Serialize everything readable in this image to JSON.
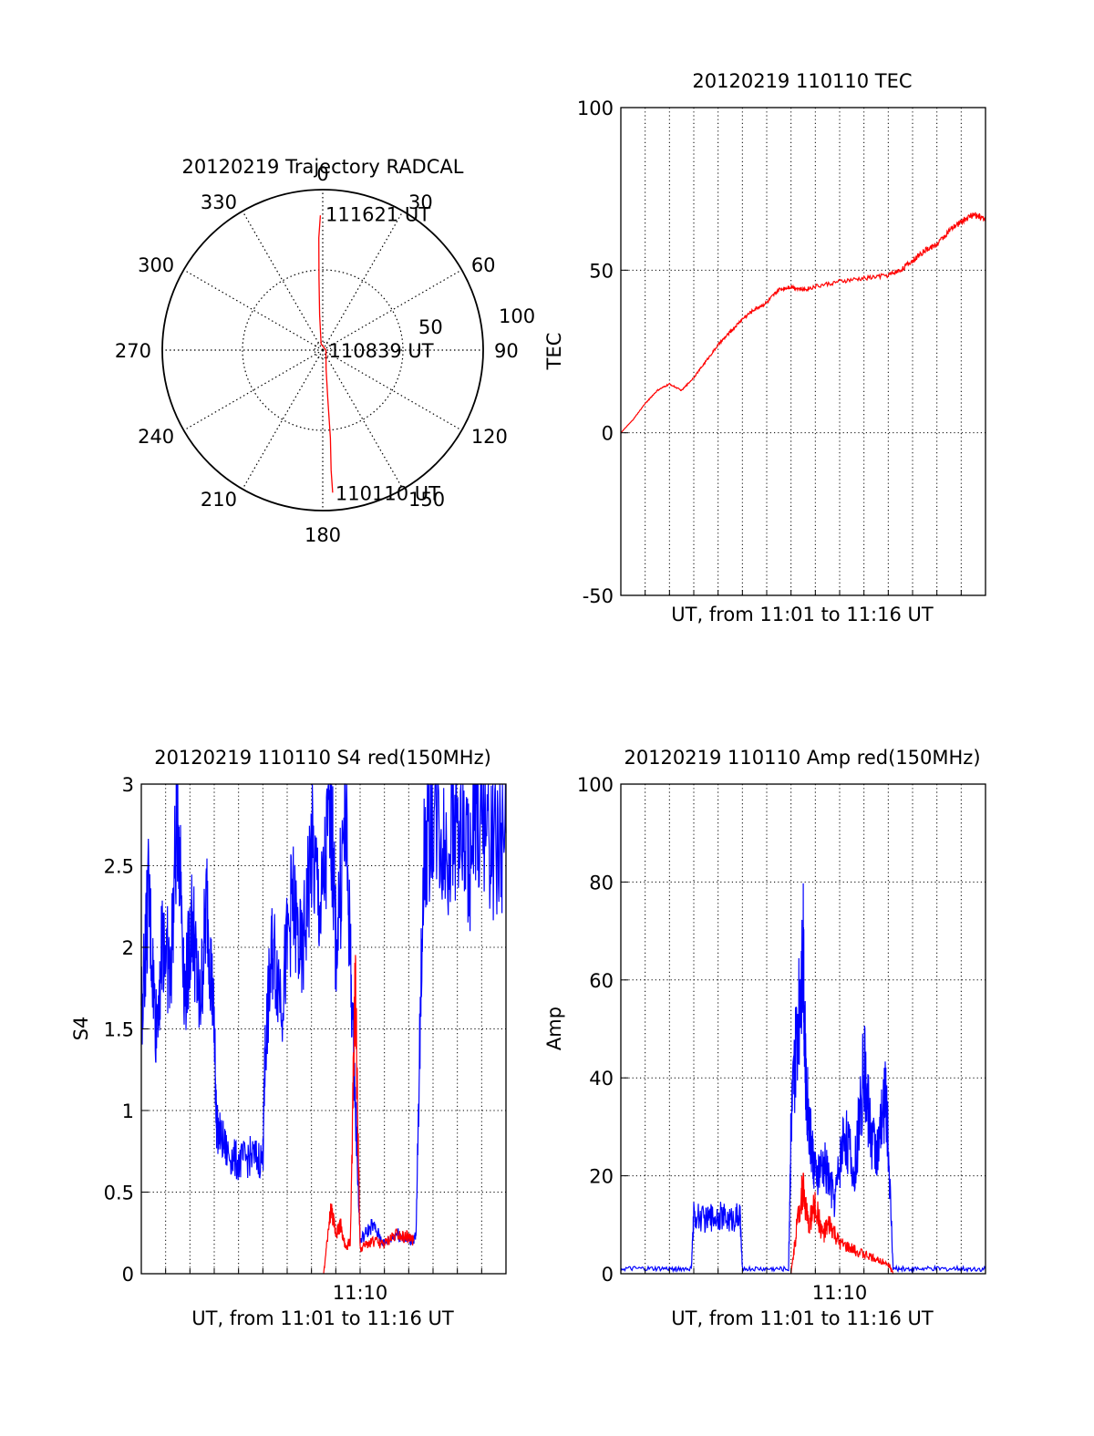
{
  "colors": {
    "background": "#ffffff",
    "axis": "#000000",
    "grid": "#000000",
    "series_red": "#ff0000",
    "series_blue": "#0000ff"
  },
  "chart_data": [
    {
      "id": "polar",
      "type": "scatter",
      "subtype": "polar_trajectory",
      "title": "20120219 Trajectory RADCAL",
      "angle_labels": [
        "0",
        "30",
        "60",
        "90",
        "120",
        "150",
        "180",
        "210",
        "240",
        "270",
        "300",
        "330"
      ],
      "radial_labels": [
        "50",
        "100"
      ],
      "radial_range": [
        0,
        100
      ],
      "grid": true,
      "annotations": [
        {
          "text": "111621 UT",
          "azimuth": 0,
          "radius": 85
        },
        {
          "text": "110839 UT",
          "azimuth": 90,
          "radius": 2
        },
        {
          "text": "110110 UT",
          "azimuth": 176,
          "radius": 89
        }
      ],
      "series": [
        {
          "color": "#ff0000",
          "points": [
            {
              "azimuth": 359,
              "radius": 84
            },
            {
              "azimuth": 358,
              "radius": 70
            },
            {
              "azimuth": 357,
              "radius": 45
            },
            {
              "azimuth": 355,
              "radius": 22
            },
            {
              "azimuth": 345,
              "radius": 4
            },
            {
              "azimuth": 90,
              "radius": 2
            },
            {
              "azimuth": 170,
              "radius": 12
            },
            {
              "azimuth": 174,
              "radius": 30
            },
            {
              "azimuth": 175,
              "radius": 55
            },
            {
              "azimuth": 176,
              "radius": 75
            },
            {
              "azimuth": 176,
              "radius": 89
            }
          ]
        }
      ]
    },
    {
      "id": "tec",
      "type": "line",
      "title": "20120219 110110 TEC",
      "xlabel": "UT, from 11:01 to 11:16 UT",
      "ylabel": "TEC",
      "xlim": [
        0,
        15
      ],
      "ylim": [
        -50,
        100
      ],
      "yticks": [
        "-50",
        "0",
        "50",
        "100"
      ],
      "grid": true,
      "series": [
        {
          "color": "#ff0000",
          "x": [
            0.0,
            0.5,
            1.0,
            1.5,
            2.0,
            2.5,
            3.0,
            3.5,
            4.0,
            4.5,
            5.0,
            5.5,
            6.0,
            6.5,
            7.0,
            7.5,
            8.0,
            9.0,
            10.0,
            11.0,
            11.5,
            12.0,
            12.5,
            13.0,
            13.5,
            14.0,
            14.5,
            15.0
          ],
          "y": [
            0,
            4,
            9,
            13,
            15,
            13,
            17,
            22,
            27,
            31,
            35,
            38,
            40,
            44,
            45,
            44,
            45,
            46.5,
            47.5,
            48.5,
            50,
            53,
            56,
            58,
            62,
            65,
            67,
            66
          ]
        }
      ]
    },
    {
      "id": "s4",
      "type": "line",
      "title": "20120219 110110 S4 red(150MHz)",
      "xlabel": "UT, from 11:01 to 11:16 UT",
      "ylabel": "S4",
      "xlim": [
        0,
        15
      ],
      "ylim": [
        0,
        3
      ],
      "yticks": [
        "0",
        "0.5",
        "1",
        "1.5",
        "2",
        "2.5",
        "3"
      ],
      "xticks": [
        {
          "value": 9,
          "label": "11:10"
        }
      ],
      "grid": true,
      "series": [
        {
          "color": "#0000ff",
          "x": [
            0.0,
            0.3,
            0.6,
            0.9,
            1.2,
            1.5,
            1.8,
            2.1,
            2.4,
            2.7,
            3.0,
            3.1,
            3.5,
            4.0,
            4.5,
            5.0,
            5.1,
            5.4,
            5.8,
            6.2,
            6.6,
            7.0,
            7.4,
            7.8,
            8.0,
            8.4,
            8.7,
            9.0,
            9.5,
            10.0,
            10.5,
            11.0,
            11.3,
            11.6,
            12.0,
            12.5,
            13.0,
            13.5,
            14.0,
            14.5,
            15.0
          ],
          "y": [
            1.6,
            2.3,
            1.5,
            2.1,
            1.8,
            2.9,
            1.7,
            2.2,
            1.6,
            2.3,
            1.5,
            0.9,
            0.75,
            0.68,
            0.72,
            0.7,
            1.4,
            2.0,
            1.7,
            2.3,
            1.9,
            2.6,
            2.2,
            2.9,
            2.0,
            2.8,
            1.5,
            0.2,
            0.3,
            0.18,
            0.25,
            0.2,
            0.22,
            2.5,
            2.9,
            2.6,
            2.8,
            2.5,
            2.9,
            2.6,
            2.7
          ]
        },
        {
          "color": "#ff0000",
          "x": [
            7.5,
            7.8,
            8.0,
            8.2,
            8.4,
            8.6,
            8.8,
            9.0,
            9.5,
            10.0,
            10.5,
            11.0,
            11.2
          ],
          "y": [
            0.0,
            0.4,
            0.25,
            0.3,
            0.15,
            0.2,
            1.8,
            0.15,
            0.2,
            0.18,
            0.25,
            0.22,
            0.2
          ]
        }
      ]
    },
    {
      "id": "amp",
      "type": "line",
      "title": "20120219 110110 Amp red(150MHz)",
      "xlabel": "UT, from 11:01 to 11:16 UT",
      "ylabel": "Amp",
      "xlim": [
        0,
        15
      ],
      "ylim": [
        0,
        100
      ],
      "yticks": [
        "0",
        "20",
        "40",
        "60",
        "80",
        "100"
      ],
      "xticks": [
        {
          "value": 9,
          "label": "11:10"
        }
      ],
      "grid": true,
      "series": [
        {
          "color": "#0000ff",
          "x": [
            0.0,
            1.0,
            2.0,
            2.9,
            3.0,
            3.5,
            4.0,
            4.5,
            4.9,
            5.0,
            6.0,
            6.9,
            7.0,
            7.2,
            7.5,
            7.6,
            7.8,
            8.0,
            8.4,
            8.8,
            9.2,
            9.6,
            10.0,
            10.3,
            10.6,
            10.9,
            11.2,
            12.0,
            13.0,
            14.0,
            15.0
          ],
          "y": [
            1,
            1,
            1,
            1,
            12,
            11,
            12,
            11,
            12,
            1,
            1,
            1,
            30,
            45,
            70,
            40,
            28,
            20,
            22,
            15,
            30,
            20,
            42,
            28,
            25,
            38,
            1,
            1,
            1,
            1,
            1
          ]
        },
        {
          "color": "#ff0000",
          "x": [
            7.0,
            7.3,
            7.5,
            7.7,
            8.0,
            8.3,
            8.6,
            9.0,
            9.5,
            10.0,
            10.5,
            11.0,
            11.2
          ],
          "y": [
            0,
            12,
            18,
            10,
            14,
            8,
            10,
            6,
            5,
            4,
            3,
            2,
            0
          ]
        }
      ]
    }
  ]
}
